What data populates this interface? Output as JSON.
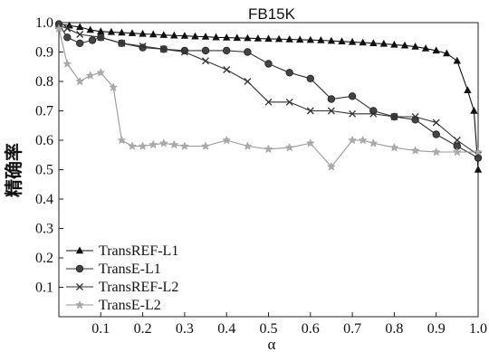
{
  "chart_data": {
    "type": "line",
    "title": "FB15K",
    "xlabel": "α",
    "ylabel": "精确率",
    "xlim": [
      0,
      1.0
    ],
    "ylim": [
      0,
      1.0
    ],
    "xticks": [
      "0.1",
      "0.2",
      "0.3",
      "0.4",
      "0.5",
      "0.6",
      "0.7",
      "0.8",
      "0.9",
      "1.0"
    ],
    "yticks": [
      "0.1",
      "0.2",
      "0.3",
      "0.4",
      "0.5",
      "0.6",
      "0.7",
      "0.8",
      "0.9",
      "1.0"
    ],
    "legend_position": "bottom-left",
    "series": [
      {
        "name": "TransREF-L1",
        "marker": "triangle",
        "color": "#111111",
        "x": [
          0.0,
          0.025,
          0.05,
          0.075,
          0.1,
          0.125,
          0.15,
          0.175,
          0.2,
          0.225,
          0.25,
          0.275,
          0.3,
          0.325,
          0.35,
          0.375,
          0.4,
          0.425,
          0.45,
          0.475,
          0.5,
          0.525,
          0.55,
          0.575,
          0.6,
          0.625,
          0.65,
          0.675,
          0.7,
          0.725,
          0.75,
          0.775,
          0.8,
          0.825,
          0.85,
          0.875,
          0.9,
          0.925,
          0.95,
          0.975,
          0.99,
          1.0
        ],
        "y": [
          0.995,
          0.99,
          0.985,
          0.975,
          0.97,
          0.968,
          0.966,
          0.964,
          0.962,
          0.96,
          0.958,
          0.956,
          0.955,
          0.953,
          0.952,
          0.95,
          0.949,
          0.948,
          0.947,
          0.946,
          0.945,
          0.944,
          0.943,
          0.942,
          0.941,
          0.94,
          0.938,
          0.936,
          0.934,
          0.932,
          0.93,
          0.928,
          0.925,
          0.922,
          0.918,
          0.912,
          0.905,
          0.895,
          0.87,
          0.77,
          0.7,
          0.5
        ]
      },
      {
        "name": "TransE-L1",
        "marker": "circle",
        "color": "#333333",
        "x": [
          0.0,
          0.02,
          0.05,
          0.08,
          0.1,
          0.15,
          0.2,
          0.25,
          0.3,
          0.35,
          0.4,
          0.45,
          0.5,
          0.55,
          0.6,
          0.65,
          0.7,
          0.75,
          0.8,
          0.85,
          0.9,
          0.95,
          1.0
        ],
        "y": [
          0.995,
          0.95,
          0.93,
          0.94,
          0.95,
          0.93,
          0.915,
          0.91,
          0.905,
          0.905,
          0.905,
          0.9,
          0.86,
          0.83,
          0.81,
          0.74,
          0.75,
          0.7,
          0.68,
          0.67,
          0.62,
          0.58,
          0.54
        ]
      },
      {
        "name": "TransREF-L2",
        "marker": "x",
        "color": "#333333",
        "x": [
          0.0,
          0.02,
          0.05,
          0.1,
          0.15,
          0.2,
          0.25,
          0.3,
          0.35,
          0.4,
          0.45,
          0.5,
          0.55,
          0.6,
          0.65,
          0.7,
          0.75,
          0.8,
          0.85,
          0.9,
          0.95,
          1.0
        ],
        "y": [
          0.99,
          0.98,
          0.96,
          0.95,
          0.93,
          0.92,
          0.91,
          0.9,
          0.87,
          0.84,
          0.8,
          0.73,
          0.73,
          0.7,
          0.7,
          0.69,
          0.69,
          0.68,
          0.68,
          0.66,
          0.6,
          0.55
        ]
      },
      {
        "name": "TransE-L2",
        "marker": "star",
        "color": "#999999",
        "x": [
          0.0,
          0.02,
          0.05,
          0.075,
          0.1,
          0.13,
          0.15,
          0.175,
          0.2,
          0.225,
          0.25,
          0.275,
          0.3,
          0.35,
          0.4,
          0.45,
          0.5,
          0.55,
          0.6,
          0.65,
          0.7,
          0.725,
          0.75,
          0.8,
          0.85,
          0.9,
          0.95,
          1.0
        ],
        "y": [
          0.98,
          0.86,
          0.8,
          0.82,
          0.83,
          0.78,
          0.6,
          0.58,
          0.58,
          0.585,
          0.59,
          0.585,
          0.58,
          0.58,
          0.6,
          0.58,
          0.57,
          0.575,
          0.59,
          0.51,
          0.6,
          0.6,
          0.59,
          0.575,
          0.565,
          0.56,
          0.56,
          0.56
        ]
      }
    ]
  }
}
